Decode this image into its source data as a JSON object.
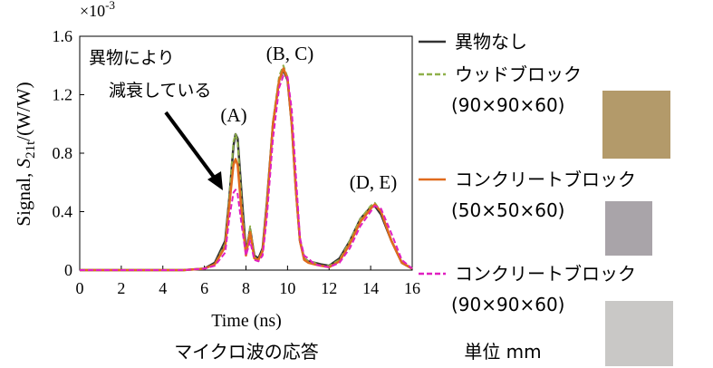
{
  "chart_data": {
    "type": "line",
    "y_multiplier": {
      "base": "×10",
      "exponent": "-3"
    },
    "ylabel": {
      "prefix": "Signal, ",
      "symbol": "S",
      "subscript": "21t",
      "suffix": "/(W/W)"
    },
    "xlabel": "Time (ns)",
    "xlim": [
      0,
      16
    ],
    "xticks": [
      0,
      2,
      4,
      6,
      8,
      10,
      12,
      14,
      16
    ],
    "ylim": [
      0,
      1.6
    ],
    "yticks": [
      0,
      0.4,
      0.8,
      1.2,
      1.6
    ],
    "x": [
      0,
      1,
      2,
      3,
      4,
      5,
      6,
      6.5,
      7,
      7.2,
      7.4,
      7.5,
      7.6,
      7.8,
      8,
      8.2,
      8.4,
      8.6,
      8.8,
      9,
      9.3,
      9.6,
      9.8,
      10,
      10.2,
      10.4,
      10.6,
      10.8,
      11,
      11.3,
      11.6,
      12,
      12.5,
      13,
      13.5,
      14,
      14.2,
      14.5,
      15,
      15.5,
      16
    ],
    "series": [
      {
        "name": "異物なし",
        "color": "#333333",
        "style": "solid",
        "values": [
          0,
          0,
          0,
          0,
          0,
          0,
          0.01,
          0.05,
          0.2,
          0.5,
          0.85,
          0.93,
          0.9,
          0.5,
          0.12,
          0.28,
          0.1,
          0.08,
          0.15,
          0.45,
          1.0,
          1.3,
          1.37,
          1.3,
          1.0,
          0.55,
          0.2,
          0.08,
          0.06,
          0.05,
          0.04,
          0.03,
          0.08,
          0.2,
          0.35,
          0.43,
          0.44,
          0.38,
          0.2,
          0.05,
          0.01
        ]
      },
      {
        "name": "ウッドブロック",
        "sublabel": "(90×90×60)",
        "color": "#8fb04a",
        "style": "dashed",
        "values": [
          0,
          0,
          0,
          0,
          0,
          0,
          0.01,
          0.04,
          0.18,
          0.5,
          0.88,
          0.93,
          0.88,
          0.45,
          0.1,
          0.3,
          0.09,
          0.07,
          0.14,
          0.45,
          1.02,
          1.33,
          1.4,
          1.32,
          1.0,
          0.55,
          0.2,
          0.08,
          0.06,
          0.05,
          0.03,
          0.03,
          0.07,
          0.2,
          0.35,
          0.44,
          0.46,
          0.4,
          0.2,
          0.05,
          0.01
        ]
      },
      {
        "name": "コンクリートブロック",
        "sublabel": "(50×50×60)",
        "color": "#e06b1d",
        "style": "solid",
        "values": [
          0,
          0,
          0,
          0,
          0,
          0,
          0.01,
          0.04,
          0.16,
          0.45,
          0.72,
          0.76,
          0.72,
          0.38,
          0.1,
          0.26,
          0.08,
          0.07,
          0.13,
          0.42,
          1.0,
          1.3,
          1.38,
          1.31,
          1.0,
          0.55,
          0.2,
          0.07,
          0.05,
          0.04,
          0.03,
          0.02,
          0.06,
          0.18,
          0.33,
          0.42,
          0.45,
          0.4,
          0.2,
          0.05,
          0.01
        ]
      },
      {
        "name": "コンクリートブロック",
        "sublabel": "(90×90×60)",
        "color": "#e020c0",
        "style": "dashed",
        "values": [
          0,
          0,
          0,
          0,
          0,
          0,
          0.01,
          0.03,
          0.12,
          0.36,
          0.53,
          0.55,
          0.52,
          0.3,
          0.1,
          0.2,
          0.07,
          0.06,
          0.1,
          0.35,
          0.9,
          1.25,
          1.33,
          1.32,
          1.1,
          0.65,
          0.22,
          0.1,
          0.08,
          0.04,
          0.03,
          0.02,
          0.05,
          0.15,
          0.3,
          0.4,
          0.44,
          0.42,
          0.25,
          0.07,
          0.01
        ]
      }
    ],
    "annotations": {
      "peak_a": "(A)",
      "peak_bc": "(B, C)",
      "peak_de": "(D, E)",
      "note_line1": "異物により",
      "note_line2": "減衰している"
    },
    "caption": "マイクロ波の応答",
    "unit_note": "単位 mm"
  }
}
